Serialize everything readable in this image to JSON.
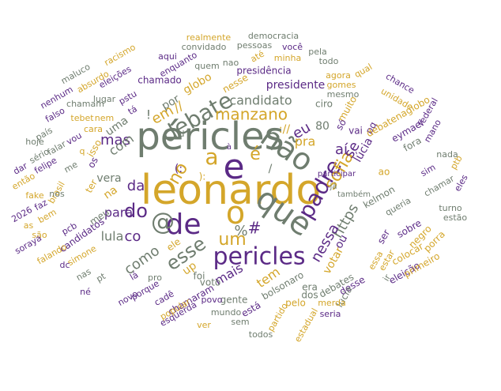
{
  "colors": {
    "gold": "#d4a62a",
    "purple": "#5b2a86",
    "gray": "#6f7d6f"
  },
  "words": [
    {
      "text": "leonardo",
      "weight": 10,
      "color": "gold"
    },
    {
      "text": "péricles",
      "weight": 9,
      "color": "gray"
    },
    {
      "text": "e",
      "weight": 9,
      "color": "purple"
    },
    {
      "text": "que",
      "weight": 8,
      "color": "gray"
    },
    {
      "text": "o",
      "weight": 8,
      "color": "gold"
    },
    {
      "text": "não",
      "weight": 7,
      "color": "gray"
    },
    {
      "text": "de",
      "weight": 7,
      "color": "purple"
    },
    {
      "text": "pericles",
      "weight": 7,
      "color": "purple"
    },
    {
      "text": "@",
      "weight": 6,
      "color": "gray"
    },
    {
      "text": "padre",
      "weight": 6,
      "color": "purple"
    },
    {
      "text": "a",
      "weight": 6,
      "color": "gold"
    },
    {
      "text": "debate",
      "weight": 6,
      "color": "gray"
    },
    {
      "text": "manzano",
      "weight": 5,
      "color": "gold"
    },
    {
      "text": "é",
      "weight": 5,
      "color": "gold"
    },
    {
      "text": "esse",
      "weight": 5,
      "color": "gray"
    },
    {
      "text": "sofia",
      "weight": 5,
      "color": "gold"
    },
    {
      "text": "do",
      "weight": 5,
      "color": "purple"
    },
    {
      "text": "https",
      "weight": 5,
      "color": "gray"
    },
    {
      "text": "um",
      "weight": 4,
      "color": "gold"
    },
    {
      "text": "candidato",
      "weight": 4,
      "color": "gray"
    },
    {
      "text": "no",
      "weight": 4,
      "color": "gold"
    },
    {
      "text": "da",
      "weight": 4,
      "color": "purple"
    },
    {
      "text": "eu",
      "weight": 4,
      "color": "purple"
    },
    {
      "text": "co",
      "weight": 4,
      "color": "purple"
    },
    {
      "text": "se",
      "weight": 4,
      "color": "purple"
    },
    {
      "text": "em",
      "weight": 4,
      "color": "gold"
    },
    {
      "text": "mas",
      "weight": 4,
      "color": "purple"
    },
    {
      "text": "pra",
      "weight": 4,
      "color": "gold"
    },
    {
      "text": "como",
      "weight": 4,
      "color": "gray"
    },
    {
      "text": "para",
      "weight": 4,
      "color": "purple"
    },
    {
      "text": "presidente",
      "weight": 3,
      "color": "purple"
    },
    {
      "text": "mais",
      "weight": 3,
      "color": "purple"
    },
    {
      "text": "lula",
      "weight": 3,
      "color": "gray"
    },
    {
      "text": "votar",
      "weight": 3,
      "color": "gold"
    },
    {
      "text": "lúcia",
      "weight": 3,
      "color": "purple"
    },
    {
      "text": "ou",
      "weight": 3,
      "color": "purple"
    },
    {
      "text": "tem",
      "weight": 3,
      "color": "gold"
    },
    {
      "text": "vera",
      "weight": 3,
      "color": "gray"
    },
    {
      "text": "com",
      "weight": 3,
      "color": "gray"
    },
    {
      "text": "por",
      "weight": 3,
      "color": "gray"
    },
    {
      "text": "uma",
      "weight": 3,
      "color": "gray"
    },
    {
      "text": "80",
      "weight": 3,
      "color": "gray"
    },
    {
      "text": "na",
      "weight": 3,
      "color": "gold"
    },
    {
      "text": "up",
      "weight": 3,
      "color": "gold"
    },
    {
      "text": "globo",
      "weight": 3,
      "color": "gold"
    },
    {
      "text": "pq",
      "weight": 3,
      "color": "purple"
    },
    {
      "text": "vai",
      "weight": 3,
      "color": "purple"
    },
    {
      "text": "ao",
      "weight": 3,
      "color": "gold"
    },
    {
      "text": "voto",
      "weight": 2,
      "color": "gray"
    },
    {
      "text": "foi",
      "weight": 2,
      "color": "gray"
    },
    {
      "text": "bolsonaro",
      "weight": 2,
      "color": "gray"
    },
    {
      "text": "debates",
      "weight": 2,
      "color": "gray"
    },
    {
      "text": "muito",
      "weight": 2,
      "color": "gold"
    },
    {
      "text": "chamado",
      "weight": 2,
      "color": "purple"
    },
    {
      "text": "presidência",
      "weight": 2,
      "color": "purple"
    },
    {
      "text": "nesse",
      "weight": 2,
      "color": "gold"
    },
    {
      "text": "só",
      "weight": 2,
      "color": "purple"
    },
    {
      "text": "ciro",
      "weight": 2,
      "color": "gray"
    },
    {
      "text": "fora",
      "weight": 2,
      "color": "gray"
    },
    {
      "text": "meu",
      "weight": 2,
      "color": "gray"
    },
    {
      "text": "ele",
      "weight": 2,
      "color": "gold"
    },
    {
      "text": "ter",
      "weight": 2,
      "color": "gold"
    },
    {
      "text": "os",
      "weight": 2,
      "color": "purple"
    },
    {
      "text": "isso",
      "weight": 2,
      "color": "gold"
    },
    {
      "text": "eymael",
      "weight": 2,
      "color": "purple"
    },
    {
      "text": "kelmon",
      "weight": 2,
      "color": "gray"
    },
    {
      "text": "candidatos",
      "weight": 2,
      "color": "purple"
    },
    {
      "text": "chamaram",
      "weight": 2,
      "color": "purple"
    },
    {
      "text": "debatenaglobo",
      "weight": 2,
      "color": "gold"
    },
    {
      "text": "ser",
      "weight": 2,
      "color": "purple"
    },
    {
      "text": "sobre",
      "weight": 2,
      "color": "purple"
    },
    {
      "text": "negro",
      "weight": 2,
      "color": "gold"
    },
    {
      "text": "colocar",
      "weight": 2,
      "color": "gold"
    },
    {
      "text": "porra",
      "weight": 2,
      "color": "gold"
    },
    {
      "text": "desse",
      "weight": 2,
      "color": "purple"
    },
    {
      "text": "lucia",
      "weight": 2,
      "color": "gray"
    },
    {
      "text": "pelo",
      "weight": 2,
      "color": "gold"
    },
    {
      "text": "gente",
      "weight": 2,
      "color": "gray"
    },
    {
      "text": "está",
      "weight": 2,
      "color": "purple"
    },
    {
      "text": "dos",
      "weight": 2,
      "color": "gray"
    },
    {
      "text": "era",
      "weight": 2,
      "color": "gray"
    },
    {
      "text": "ir",
      "weight": 2,
      "color": "gray"
    },
    {
      "text": "eleição",
      "weight": 2,
      "color": "purple"
    },
    {
      "text": "primeiro",
      "weight": 2,
      "color": "gold"
    },
    {
      "text": "essa",
      "weight": 2,
      "color": "gold"
    },
    {
      "text": "estar",
      "weight": 2,
      "color": "gold"
    },
    {
      "text": "pro",
      "weight": 2,
      "color": "gray"
    },
    {
      "text": "lá",
      "weight": 2,
      "color": "purple"
    },
    {
      "text": "porque",
      "weight": 2,
      "color": "purple"
    },
    {
      "text": "popular",
      "weight": 2,
      "color": "gold"
    },
    {
      "text": "simone",
      "weight": 2,
      "color": "gold"
    },
    {
      "text": "pcb",
      "weight": 2,
      "color": "purple"
    },
    {
      "text": "brasil",
      "weight": 2,
      "color": "gold"
    },
    {
      "text": "nos",
      "weight": 2,
      "color": "gray"
    },
    {
      "text": "chance",
      "weight": 2,
      "color": "purple"
    },
    {
      "text": "unidade",
      "weight": 2,
      "color": "gold"
    },
    {
      "text": "federal",
      "weight": 2,
      "color": "purple"
    },
    {
      "text": "mano",
      "weight": 2,
      "color": "purple"
    },
    {
      "text": "nada",
      "weight": 2,
      "color": "gray"
    },
    {
      "text": "sim",
      "weight": 2,
      "color": "purple"
    },
    {
      "text": "ptb",
      "weight": 2,
      "color": "gold"
    },
    {
      "text": "eles",
      "weight": 2,
      "color": "purple"
    },
    {
      "text": "chamar",
      "weight": 2,
      "color": "gray"
    },
    {
      "text": "queria",
      "weight": 2,
      "color": "gray"
    },
    {
      "text": "turno",
      "weight": 2,
      "color": "gray"
    },
    {
      "text": "estão",
      "weight": 2,
      "color": "gray"
    },
    {
      "text": "realmente",
      "weight": 1,
      "color": "gold"
    },
    {
      "text": "democracia",
      "weight": 1,
      "color": "gray"
    },
    {
      "text": "convidado",
      "weight": 1,
      "color": "gray"
    },
    {
      "text": "pessoas",
      "weight": 1,
      "color": "gray"
    },
    {
      "text": "você",
      "weight": 1,
      "color": "purple"
    },
    {
      "text": "pela",
      "weight": 1,
      "color": "gray"
    },
    {
      "text": "racismo",
      "weight": 1,
      "color": "gold"
    },
    {
      "text": "aqui",
      "weight": 1,
      "color": "purple"
    },
    {
      "text": "enquanto",
      "weight": 1,
      "color": "purple"
    },
    {
      "text": "quem",
      "weight": 1,
      "color": "gray"
    },
    {
      "text": "nao",
      "weight": 1,
      "color": "gray"
    },
    {
      "text": "até",
      "weight": 1,
      "color": "gold"
    },
    {
      "text": "minha",
      "weight": 1,
      "color": "gold"
    },
    {
      "text": "todo",
      "weight": 1,
      "color": "gray"
    },
    {
      "text": "maluco",
      "weight": 1,
      "color": "gray"
    },
    {
      "text": "eleições",
      "weight": 1,
      "color": "purple"
    },
    {
      "text": "absurdo",
      "weight": 1,
      "color": "gold"
    },
    {
      "text": "lugar",
      "weight": 1,
      "color": "gray"
    },
    {
      "text": "pstu",
      "weight": 1,
      "color": "purple"
    },
    {
      "text": "agora",
      "weight": 1,
      "color": "gold"
    },
    {
      "text": "qual",
      "weight": 1,
      "color": "gold"
    },
    {
      "text": "gomes",
      "weight": 1,
      "color": "gold"
    },
    {
      "text": "mesmo",
      "weight": 1,
      "color": "gray"
    },
    {
      "text": "nenhum",
      "weight": 1,
      "color": "purple"
    },
    {
      "text": "falso",
      "weight": 1,
      "color": "purple"
    },
    {
      "text": "chamam",
      "weight": 1,
      "color": "gray"
    },
    {
      "text": "tá",
      "weight": 1,
      "color": "purple"
    },
    {
      "text": "tebet",
      "weight": 1,
      "color": "gold"
    },
    {
      "text": "nem",
      "weight": 1,
      "color": "gold"
    },
    {
      "text": "cara",
      "weight": 1,
      "color": "gold"
    },
    {
      "text": "país",
      "weight": 1,
      "color": "gray"
    },
    {
      "text": "hoje",
      "weight": 1,
      "color": "gray"
    },
    {
      "text": "sério",
      "weight": 1,
      "color": "gray"
    },
    {
      "text": "falar",
      "weight": 1,
      "color": "gray"
    },
    {
      "text": "vou",
      "weight": 1,
      "color": "purple"
    },
    {
      "text": "q",
      "weight": 1,
      "color": "gold"
    },
    {
      "text": "felipe",
      "weight": 1,
      "color": "purple"
    },
    {
      "text": "me",
      "weight": 1,
      "color": "gray"
    },
    {
      "text": "dar",
      "weight": 1,
      "color": "purple"
    },
    {
      "text": "então",
      "weight": 1,
      "color": "gold"
    },
    {
      "text": "fake",
      "weight": 1,
      "color": "gold"
    },
    {
      "text": "2026",
      "weight": 1,
      "color": "purple"
    },
    {
      "text": "faz",
      "weight": 1,
      "color": "purple"
    },
    {
      "text": "as",
      "weight": 1,
      "color": "gold"
    },
    {
      "text": "bem",
      "weight": 1,
      "color": "gold"
    },
    {
      "text": "são",
      "weight": 1,
      "color": "gold"
    },
    {
      "text": "soraya",
      "weight": 1,
      "color": "purple"
    },
    {
      "text": "falando",
      "weight": 1,
      "color": "gold"
    },
    {
      "text": "dc",
      "weight": 1,
      "color": "purple"
    },
    {
      "text": "nas",
      "weight": 1,
      "color": "gray"
    },
    {
      "text": "pt",
      "weight": 1,
      "color": "gray"
    },
    {
      "text": "né",
      "weight": 1,
      "color": "purple"
    },
    {
      "text": "novo",
      "weight": 1,
      "color": "purple"
    },
    {
      "text": "cadê",
      "weight": 1,
      "color": "purple"
    },
    {
      "text": "esquerda",
      "weight": 1,
      "color": "purple"
    },
    {
      "text": "povo",
      "weight": 1,
      "color": "purple"
    },
    {
      "text": "mundo",
      "weight": 1,
      "color": "gray"
    },
    {
      "text": "ver",
      "weight": 1,
      "color": "gold"
    },
    {
      "text": "sem",
      "weight": 1,
      "color": "gray"
    },
    {
      "text": "todos",
      "weight": 1,
      "color": "gray"
    },
    {
      "text": "partido",
      "weight": 1,
      "color": "gold"
    },
    {
      "text": "estadual",
      "weight": 1,
      "color": "gold"
    },
    {
      "text": "seria",
      "weight": 1,
      "color": "purple"
    },
    {
      "text": "merda",
      "weight": 1,
      "color": "gold"
    },
    {
      "text": "participar",
      "weight": 1,
      "color": "purple"
    },
    {
      "text": "também",
      "weight": 1,
      "color": "gray"
    },
    {
      "text": "já",
      "weight": 1,
      "color": "gray"
    },
    {
      "text": "d",
      "weight": 1,
      "color": "gray"
    },
    {
      "text": "à",
      "weight": 1,
      "color": "purple"
    },
    {
      "text": "nessa",
      "weight": 1,
      "color": "purple"
    },
    {
      "text": "aí",
      "weight": 1,
      "color": "purple"
    },
    {
      "text": "%",
      "weight": 3,
      "color": "gray"
    },
    {
      "text": "#",
      "weight": 3,
      "color": "purple"
    },
    {
      "text": "//",
      "weight": 3,
      "color": "gold"
    },
    {
      "text": "://",
      "weight": 4,
      "color": "gold"
    },
    {
      "text": "/",
      "weight": 2,
      "color": "gray"
    },
    {
      "text": "!",
      "weight": 2,
      "color": "gray"
    },
    {
      "text": "(:",
      "weight": 3,
      "color": "purple"
    },
    {
      "text": "):",
      "weight": 3,
      "color": "gold"
    },
    {
      "text": "?",
      "weight": 2,
      "color": "gray"
    },
    {
      "text": "0",
      "weight": 2,
      "color": "gray"
    }
  ]
}
